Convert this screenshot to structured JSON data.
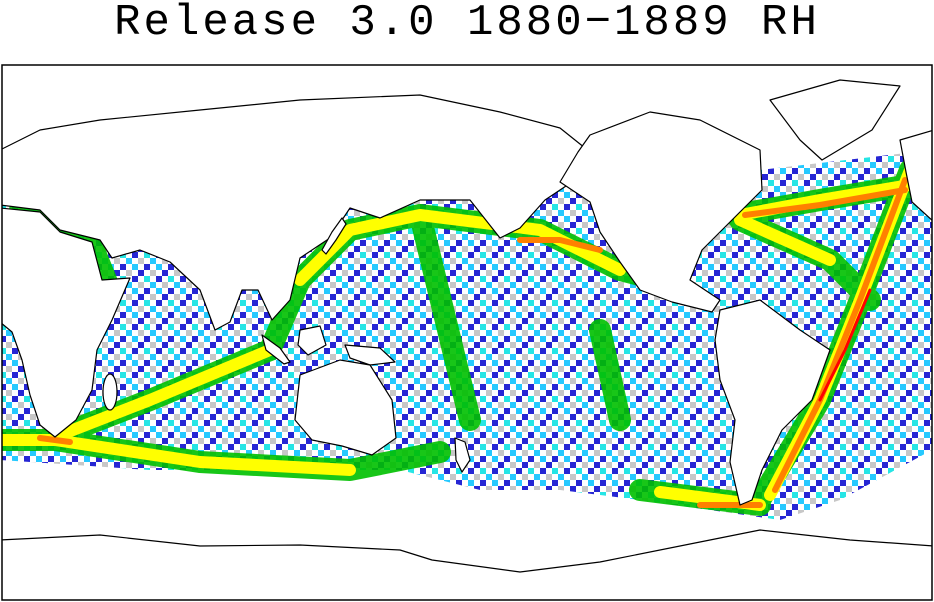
{
  "title": "Release 3.0 1880−1889 RH"
}
